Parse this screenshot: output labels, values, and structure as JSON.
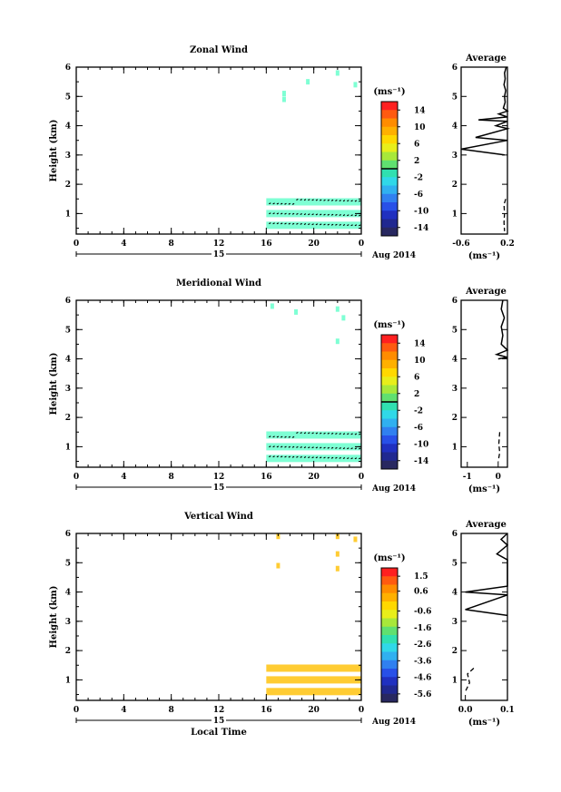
{
  "figure": {
    "xlabel": "Local Time",
    "ylabel": "Height (km)",
    "date_label": "Aug 2014",
    "day_label": "15"
  },
  "chart_data": [
    {
      "type": "heatmap",
      "title": "Zonal Wind",
      "xlabel": "",
      "ylabel": "Height (km)",
      "xlim": [
        0,
        24
      ],
      "ylim": [
        0.3,
        6.0
      ],
      "x_ticks": [
        "0",
        "4",
        "8",
        "12",
        "16",
        "20",
        "0"
      ],
      "y_ticks": [
        "1",
        "2",
        "3",
        "4",
        "5",
        "6"
      ],
      "colorbar": {
        "unit": "(ms⁻¹)",
        "ticks": [
          "14",
          "10",
          "6",
          "2",
          "-2",
          "-6",
          "-10",
          "-14"
        ],
        "min": -16,
        "max": 16,
        "zero_line": 0
      },
      "bands": [
        {
          "height_km": 1.4,
          "x_start": 16,
          "x_end": 24,
          "color": "#7fffd4"
        },
        {
          "height_km": 1.0,
          "x_start": 16,
          "x_end": 24,
          "color": "#7fffd4"
        },
        {
          "height_km": 0.6,
          "x_start": 16,
          "x_end": 24,
          "color": "#7fffd4"
        }
      ],
      "specks": [
        {
          "x": 22,
          "y": 5.8,
          "color": "#7fffd4"
        },
        {
          "x": 19.5,
          "y": 5.5,
          "color": "#7fffd4"
        },
        {
          "x": 23.5,
          "y": 5.4,
          "color": "#7fffd4"
        },
        {
          "x": 17.5,
          "y": 5.1,
          "color": "#7fffd4"
        },
        {
          "x": 17.5,
          "y": 4.9,
          "color": "#7fffd4"
        }
      ],
      "average": {
        "title": "Average",
        "xlabel": "(ms⁻¹)",
        "xlim": [
          -0.6,
          0.2
        ],
        "x_ticks": [
          "-0.6",
          "0.2"
        ],
        "y_ticks": [
          "1",
          "2",
          "3",
          "4",
          "5",
          "6"
        ],
        "profile": [
          [
            0.18,
            6.0
          ],
          [
            0.15,
            5.8
          ],
          [
            0.16,
            5.6
          ],
          [
            0.14,
            5.4
          ],
          [
            0.17,
            5.2
          ],
          [
            0.15,
            5.0
          ],
          [
            0.16,
            4.8
          ],
          [
            0.13,
            4.6
          ],
          [
            0.2,
            4.5
          ],
          [
            0.05,
            4.4
          ],
          [
            0.2,
            4.3
          ],
          [
            -0.3,
            4.2
          ],
          [
            0.2,
            4.15
          ],
          [
            0.0,
            4.0
          ],
          [
            0.2,
            3.9
          ],
          [
            -0.35,
            3.6
          ],
          [
            0.2,
            3.5
          ],
          [
            -0.6,
            3.2
          ],
          [
            0.15,
            3.0
          ]
        ],
        "profile_low": [
          [
            0.17,
            1.5
          ],
          [
            0.14,
            1.3
          ],
          [
            0.15,
            1.0
          ],
          [
            0.14,
            0.7
          ],
          [
            0.15,
            0.4
          ]
        ]
      }
    },
    {
      "type": "heatmap",
      "title": "Meridional Wind",
      "xlabel": "",
      "ylabel": "Height (km)",
      "xlim": [
        0,
        24
      ],
      "ylim": [
        0.3,
        6.0
      ],
      "x_ticks": [
        "0",
        "4",
        "8",
        "12",
        "16",
        "20",
        "0"
      ],
      "y_ticks": [
        "1",
        "2",
        "3",
        "4",
        "5",
        "6"
      ],
      "colorbar": {
        "unit": "(ms⁻¹)",
        "ticks": [
          "14",
          "10",
          "6",
          "2",
          "-2",
          "-6",
          "-10",
          "-14"
        ],
        "min": -16,
        "max": 16,
        "zero_line": 0
      },
      "bands": [
        {
          "height_km": 1.4,
          "x_start": 16,
          "x_end": 24,
          "color": "#7fffd4"
        },
        {
          "height_km": 1.0,
          "x_start": 16,
          "x_end": 24,
          "color": "#7fffd4"
        },
        {
          "height_km": 0.6,
          "x_start": 16,
          "x_end": 24,
          "color": "#7fffd4"
        }
      ],
      "specks": [
        {
          "x": 16.5,
          "y": 5.8,
          "color": "#7fffd4"
        },
        {
          "x": 18.5,
          "y": 5.6,
          "color": "#7fffd4"
        },
        {
          "x": 22,
          "y": 5.7,
          "color": "#7fffd4"
        },
        {
          "x": 22.5,
          "y": 5.4,
          "color": "#7fffd4"
        },
        {
          "x": 22,
          "y": 4.6,
          "color": "#7fffd4"
        }
      ],
      "average": {
        "title": "Average",
        "xlabel": "(ms⁻¹)",
        "xlim": [
          -1.2,
          0.3
        ],
        "x_ticks": [
          "-1",
          "0"
        ],
        "y_ticks": [
          "1",
          "2",
          "3",
          "4",
          "5",
          "6"
        ],
        "profile": [
          [
            0.15,
            6.0
          ],
          [
            0.1,
            5.7
          ],
          [
            0.2,
            5.4
          ],
          [
            0.1,
            5.1
          ],
          [
            0.15,
            4.8
          ],
          [
            0.1,
            4.5
          ],
          [
            0.3,
            4.3
          ],
          [
            -0.05,
            4.15
          ],
          [
            0.3,
            4.05
          ],
          [
            0.0,
            4.0
          ]
        ],
        "profile_low": [
          [
            0.05,
            1.5
          ],
          [
            0.02,
            1.1
          ],
          [
            0.05,
            0.8
          ],
          [
            0.0,
            0.5
          ]
        ]
      }
    },
    {
      "type": "heatmap",
      "title": "Vertical Wind",
      "xlabel": "Local Time",
      "ylabel": "Height (km)",
      "xlim": [
        0,
        24
      ],
      "ylim": [
        0.3,
        6.0
      ],
      "x_ticks": [
        "0",
        "4",
        "8",
        "12",
        "16",
        "20",
        "0"
      ],
      "y_ticks": [
        "1",
        "2",
        "3",
        "4",
        "5",
        "6"
      ],
      "colorbar": {
        "unit": "(ms⁻¹)",
        "ticks": [
          "1.5",
          "0.6",
          "-0.6",
          "-1.6",
          "-2.6",
          "-3.6",
          "-4.6",
          "-5.6"
        ],
        "min": -6.1,
        "max": 2.0,
        "zero_line": null
      },
      "bands": [
        {
          "height_km": 1.4,
          "x_start": 16,
          "x_end": 24,
          "color": "#ffcc33"
        },
        {
          "height_km": 1.0,
          "x_start": 16,
          "x_end": 24,
          "color": "#ffcc33"
        },
        {
          "height_km": 0.6,
          "x_start": 16,
          "x_end": 24,
          "color": "#ffcc33"
        }
      ],
      "specks": [
        {
          "x": 17,
          "y": 5.9,
          "color": "#ffcc33"
        },
        {
          "x": 22,
          "y": 5.9,
          "color": "#ffcc33"
        },
        {
          "x": 23.5,
          "y": 5.8,
          "color": "#ffcc33"
        },
        {
          "x": 22,
          "y": 5.3,
          "color": "#ffcc33"
        },
        {
          "x": 22,
          "y": 4.8,
          "color": "#ffcc33"
        },
        {
          "x": 17,
          "y": 4.9,
          "color": "#ffcc33"
        }
      ],
      "average": {
        "title": "Average",
        "xlabel": "(ms⁻¹)",
        "xlim": [
          -0.01,
          0.1
        ],
        "x_ticks": [
          "0.0",
          "0.1"
        ],
        "y_ticks": [
          "1",
          "2",
          "3",
          "4",
          "5",
          "6"
        ],
        "profile": [
          [
            0.1,
            6.0
          ],
          [
            0.085,
            5.8
          ],
          [
            0.1,
            5.6
          ],
          [
            0.075,
            5.3
          ],
          [
            0.1,
            5.1
          ],
          [
            0.1,
            4.2
          ],
          [
            0.0,
            4.0
          ],
          [
            0.1,
            3.9
          ],
          [
            0.0,
            3.4
          ],
          [
            0.1,
            3.2
          ]
        ],
        "profile_low": [
          [
            0.02,
            1.4
          ],
          [
            0.005,
            1.2
          ],
          [
            0.01,
            0.9
          ],
          [
            0.0,
            0.6
          ]
        ]
      }
    }
  ]
}
